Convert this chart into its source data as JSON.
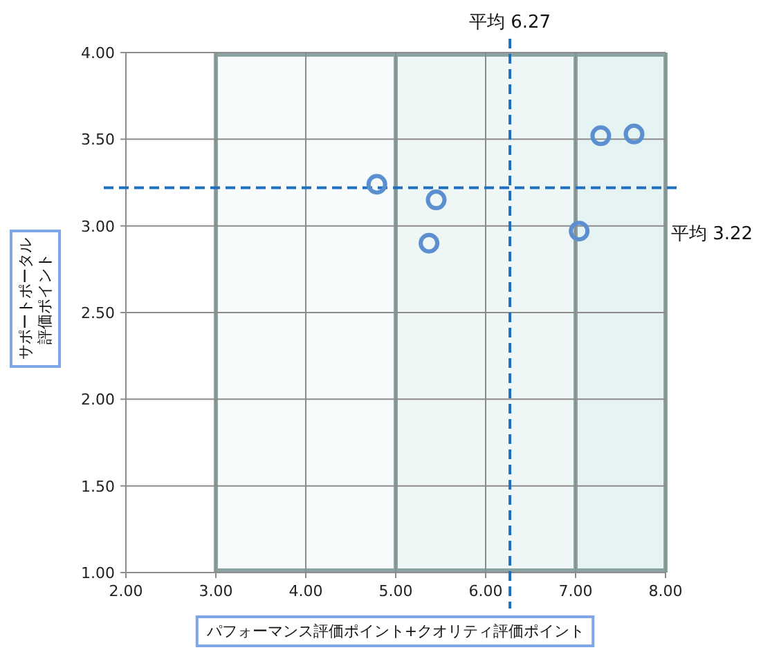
{
  "chart_data": {
    "type": "scatter",
    "xlabel": "パフォーマンス評価ポイント+クオリティ評価ポイント",
    "ylabel": "サポートポータル評価ポイント",
    "series": [
      {
        "color": "#5b8fd0",
        "x": [
          4.79,
          5.45,
          5.37,
          7.04,
          7.28,
          7.65
        ],
        "values": [
          3.24,
          3.15,
          2.9,
          2.97,
          3.52,
          3.53
        ]
      }
    ],
    "xlim": [
      2,
      8
    ],
    "ylim": [
      1,
      4
    ],
    "xticks": [
      {
        "value": 2,
        "label": "2.00"
      },
      {
        "value": 3,
        "label": "3.00"
      },
      {
        "value": 4,
        "label": "4.00"
      },
      {
        "value": 5,
        "label": "5.00"
      },
      {
        "value": 6,
        "label": "6.00"
      },
      {
        "value": 7,
        "label": "7.00"
      },
      {
        "value": 8,
        "label": "8.00"
      }
    ],
    "yticks": [
      {
        "value": 1,
        "label": "1.00"
      },
      {
        "value": 1.5,
        "label": "1.50"
      },
      {
        "value": 2,
        "label": "2.00"
      },
      {
        "value": 2.5,
        "label": "2.50"
      },
      {
        "value": 3,
        "label": "3.00"
      },
      {
        "value": 3.5,
        "label": "3.50"
      },
      {
        "value": 4,
        "label": "4.00"
      }
    ],
    "grid": true,
    "marker": "circle",
    "ref_lines": [
      {
        "axis": "x",
        "value": 6.27,
        "label": "平均 6.27",
        "color": "#1f6fbf",
        "line_style": "dashed"
      },
      {
        "axis": "y",
        "value": 3.22,
        "label": "平均 3.22",
        "color": "#1f6fbf",
        "line_style": "dashed"
      }
    ],
    "bands": [
      {
        "axis": "x",
        "from": 3,
        "to": 5,
        "color": "#f7fbfb"
      },
      {
        "axis": "x",
        "from": 5,
        "to": 7,
        "color": "#eef6f6"
      },
      {
        "axis": "x",
        "from": 7,
        "to": 8,
        "color": "#e6f3f3"
      }
    ]
  }
}
